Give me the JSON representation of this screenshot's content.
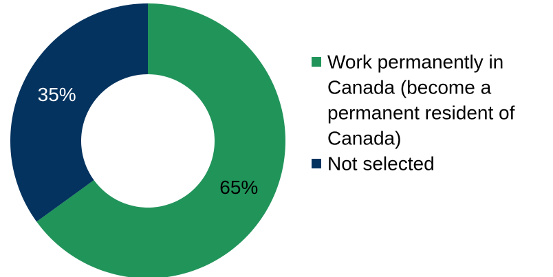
{
  "chart_data": {
    "type": "pie",
    "donut": true,
    "legend_position": "right",
    "slices": [
      {
        "name": "Work permanently in Canada (become a permanent resident of Canada)",
        "legend_lines": [
          "Work permanently in",
          "Canada (become a",
          "permanent resident of",
          "Canada)"
        ],
        "value": 65,
        "label": "65%",
        "color": "#21945A",
        "label_color": "#000000"
      },
      {
        "name": "Not selected",
        "legend_lines": [
          "Not selected"
        ],
        "value": 35,
        "label": "35%",
        "color": "#04335F",
        "label_color": "#ffffff"
      }
    ]
  }
}
